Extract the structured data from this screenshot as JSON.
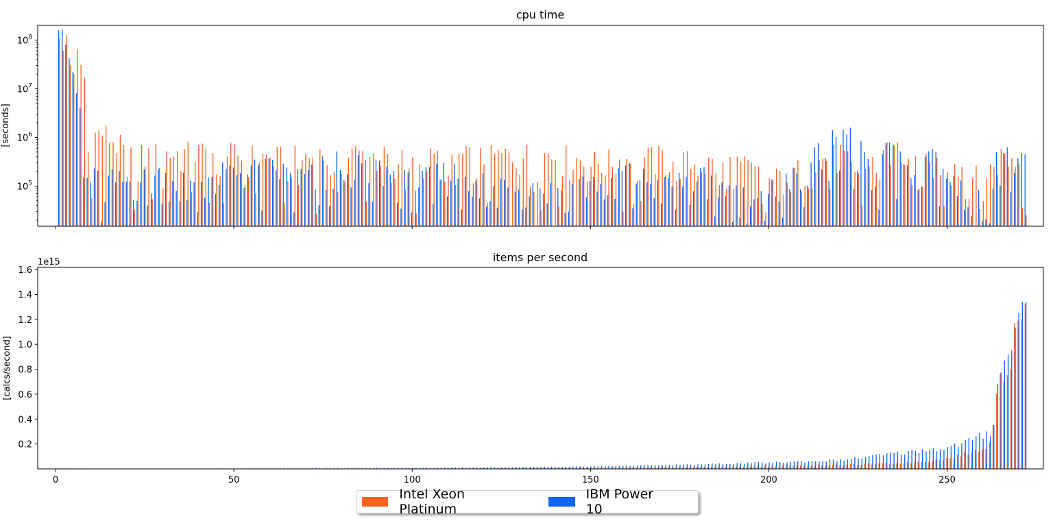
{
  "colors": {
    "intel": "#ff6223",
    "ibm": "#0f66f5"
  },
  "legend": {
    "intel": "Intel Xeon Platinum",
    "ibm": "IBM Power 10"
  },
  "chart_data": [
    {
      "type": "bar",
      "title": "cpu time",
      "ylabel": "[seconds]",
      "yscale": "log",
      "xlim": [
        -5,
        277
      ],
      "ylim": [
        15000,
        200000000
      ],
      "xticks": [
        0,
        50,
        100,
        150,
        200,
        250
      ],
      "xtick_labels_shown": false,
      "ytick_labels": [
        "10^5",
        "10^6",
        "10^7",
        "10^8"
      ],
      "ytick_values": [
        100000,
        1000000,
        10000000,
        100000000
      ],
      "x_range": [
        1,
        272
      ],
      "series": [
        {
          "name": "Intel Xeon Platinum",
          "color": "#ff6223",
          "anchors": [
            [
              1,
              110000000
            ],
            [
              2,
              60000000
            ],
            [
              3,
              130000000
            ],
            [
              4,
              30000000
            ],
            [
              5,
              20000000
            ],
            [
              6,
              65000000
            ],
            [
              7,
              31000000
            ],
            [
              8,
              17000000
            ],
            [
              9,
              500000
            ],
            [
              12,
              1400000
            ],
            [
              20,
              400000
            ],
            [
              32,
              480000
            ],
            [
              43,
              490000
            ],
            [
              60,
              380000
            ],
            [
              70,
              400000
            ],
            [
              80,
              470000
            ],
            [
              84,
              470000
            ],
            [
              90,
              400000
            ],
            [
              100,
              350000
            ],
            [
              110,
              400000
            ],
            [
              120,
              380000
            ],
            [
              130,
              450000
            ],
            [
              140,
              450000
            ],
            [
              150,
              300000
            ],
            [
              160,
              350000
            ],
            [
              170,
              400000
            ],
            [
              180,
              280000
            ],
            [
              190,
              300000
            ],
            [
              200,
              120000
            ],
            [
              210,
              230000
            ],
            [
              220,
              470000
            ],
            [
              224,
              130000
            ],
            [
              230,
              320000
            ],
            [
              233,
              800000
            ],
            [
              240,
              250000
            ],
            [
              250,
              300000
            ],
            [
              255,
              250000
            ],
            [
              260,
              90000
            ],
            [
              265,
              420000
            ],
            [
              272,
              280000
            ]
          ],
          "spikes": [
            [
              1,
              110000000
            ],
            [
              3,
              130000000
            ],
            [
              6,
              65000000
            ],
            [
              7,
              31000000
            ],
            [
              8,
              17000000
            ],
            [
              12,
              1400000
            ],
            [
              233,
              800000
            ]
          ]
        },
        {
          "name": "IBM Power 10",
          "color": "#0f66f5",
          "anchors": [
            [
              1,
              160000000
            ],
            [
              2,
              165000000
            ],
            [
              3,
              80000000
            ],
            [
              4,
              42000000
            ],
            [
              5,
              22000000
            ],
            [
              6,
              8000000
            ],
            [
              8,
              150000
            ],
            [
              12,
              140000
            ],
            [
              20,
              120000
            ],
            [
              30,
              160000
            ],
            [
              40,
              130000
            ],
            [
              50,
              200000
            ],
            [
              60,
              230000
            ],
            [
              70,
              150000
            ],
            [
              80,
              350000
            ],
            [
              90,
              250000
            ],
            [
              100,
              100000
            ],
            [
              110,
              200000
            ],
            [
              120,
              150000
            ],
            [
              130,
              100000
            ],
            [
              140,
              80000
            ],
            [
              150,
              120000
            ],
            [
              160,
              200000
            ],
            [
              170,
              90000
            ],
            [
              180,
              160000
            ],
            [
              190,
              70000
            ],
            [
              200,
              50000
            ],
            [
              206,
              230000
            ],
            [
              210,
              100000
            ],
            [
              222,
              1150000
            ],
            [
              230,
              60000
            ],
            [
              235,
              720000
            ],
            [
              240,
              100000
            ],
            [
              245,
              520000
            ],
            [
              250,
              150000
            ],
            [
              255,
              60000
            ],
            [
              260,
              50000
            ],
            [
              264,
              500000
            ],
            [
              268,
              350000
            ],
            [
              272,
              260000
            ]
          ],
          "spikes": [
            [
              222,
              1150000
            ],
            [
              235,
              720000
            ],
            [
              245,
              520000
            ],
            [
              247,
              500000
            ],
            [
              264,
              500000
            ]
          ]
        }
      ]
    },
    {
      "type": "bar",
      "title": "items per second",
      "ylabel": "[calcs/second]",
      "offset_text": "1e15",
      "xlim": [
        -5,
        277
      ],
      "ylim": [
        0,
        1.6
      ],
      "y_multiplier": "1e15",
      "xticks": [
        0,
        50,
        100,
        150,
        200,
        250
      ],
      "xtick_labels": [
        "0",
        "50",
        "100",
        "150",
        "200",
        "250"
      ],
      "yticks": [
        0.2,
        0.4,
        0.6,
        0.8,
        1.0,
        1.2,
        1.4,
        1.6
      ],
      "ytick_labels": [
        "0.2",
        "0.4",
        "0.6",
        "0.8",
        "1.0",
        "1.2",
        "1.4",
        "1.6"
      ],
      "x_range": [
        1,
        272
      ],
      "series": [
        {
          "name": "Intel Xeon Platinum",
          "color": "#ff6223",
          "anchors": [
            [
              1,
              0.0
            ],
            [
              50,
              0.001
            ],
            [
              100,
              0.003
            ],
            [
              150,
              0.008
            ],
            [
              180,
              0.015
            ],
            [
              200,
              0.02
            ],
            [
              220,
              0.03
            ],
            [
              240,
              0.05
            ],
            [
              250,
              0.08
            ],
            [
              258,
              0.14
            ],
            [
              262,
              0.2
            ],
            [
              264,
              0.6
            ],
            [
              265,
              0.76
            ],
            [
              266,
              0.7
            ],
            [
              268,
              0.8
            ],
            [
              269,
              1.17
            ],
            [
              270,
              1.19
            ],
            [
              271,
              1.2
            ],
            [
              272,
              1.32
            ]
          ]
        },
        {
          "name": "IBM Power 10",
          "color": "#0f66f5",
          "anchors": [
            [
              1,
              0.0
            ],
            [
              50,
              0.003
            ],
            [
              100,
              0.008
            ],
            [
              150,
              0.02
            ],
            [
              180,
              0.035
            ],
            [
              200,
              0.05
            ],
            [
              220,
              0.07
            ],
            [
              240,
              0.14
            ],
            [
              250,
              0.17
            ],
            [
              258,
              0.24
            ],
            [
              262,
              0.3
            ],
            [
              263,
              0.36
            ],
            [
              264,
              0.68
            ],
            [
              266,
              0.87
            ],
            [
              267,
              0.92
            ],
            [
              268,
              0.95
            ],
            [
              269,
              1.13
            ],
            [
              270,
              1.25
            ],
            [
              271,
              1.34
            ],
            [
              272,
              1.34
            ]
          ]
        }
      ]
    }
  ]
}
